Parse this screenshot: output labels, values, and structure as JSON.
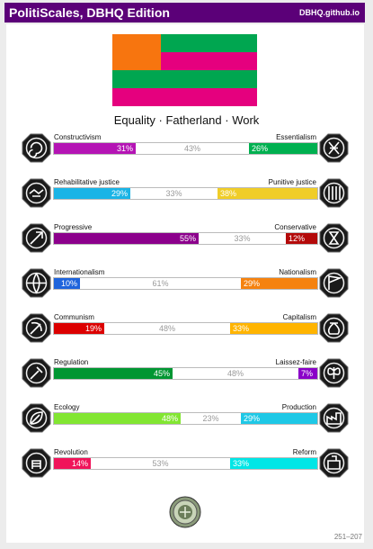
{
  "header": {
    "title": "PolitiScales, DBHQ Edition",
    "site": "DBHQ.github.io"
  },
  "flag": {
    "stripes": [
      "#00a650",
      "#e5007e",
      "#00a650",
      "#e5007e"
    ],
    "canton": "#f7750f"
  },
  "ideology": "Equality · Fatherland · Work",
  "axes": [
    {
      "left_label": "Constructivism",
      "right_label": "Essentialism",
      "left_value": 31,
      "right_value": 26,
      "center_value": 43,
      "left_text": "31%",
      "right_text": "26%",
      "center_text": "43%",
      "left_color": "#b414b4",
      "right_color": "#00b050",
      "left_icon": "swirl-icon",
      "right_icon": "dna-icon"
    },
    {
      "left_label": "Rehabilitative justice",
      "right_label": "Punitive justice",
      "left_value": 29,
      "right_value": 38,
      "center_value": 33,
      "left_text": "29%",
      "right_text": "38%",
      "center_text": "33%",
      "left_color": "#1ab4e6",
      "right_color": "#f0cd28",
      "left_icon": "handshake-icon",
      "right_icon": "prison-bars-icon"
    },
    {
      "left_label": "Progressive",
      "right_label": "Conservative",
      "left_value": 55,
      "right_value": 12,
      "center_value": 33,
      "left_text": "55%",
      "right_text": "12%",
      "center_text": "33%",
      "left_color": "#8c008c",
      "right_color": "#b40a0a",
      "left_icon": "rocket-icon",
      "right_icon": "hourglass-icon"
    },
    {
      "left_label": "Internationalism",
      "right_label": "Nationalism",
      "left_value": 10,
      "right_value": 29,
      "center_value": 61,
      "left_text": "10%",
      "right_text": "29%",
      "center_text": "61%",
      "left_color": "#1e64dc",
      "right_color": "#f5820f",
      "left_icon": "globe-icon",
      "right_icon": "flag-icon"
    },
    {
      "left_label": "Communism",
      "right_label": "Capitalism",
      "left_value": 19,
      "right_value": 33,
      "center_value": 48,
      "left_text": "19%",
      "right_text": "33%",
      "center_text": "48%",
      "left_color": "#dc0000",
      "right_color": "#ffb400",
      "left_icon": "hammer-sickle-icon",
      "right_icon": "money-bag-icon"
    },
    {
      "left_label": "Regulation",
      "right_label": "Laissez-faire",
      "left_value": 45,
      "right_value": 7,
      "center_value": 48,
      "left_text": "45%",
      "right_text": "7%",
      "center_text": "48%",
      "left_color": "#009632",
      "right_color": "#8a00c8",
      "left_icon": "gavel-icon",
      "right_icon": "butterfly-icon"
    },
    {
      "left_label": "Ecology",
      "right_label": "Production",
      "left_value": 48,
      "right_value": 29,
      "center_value": 23,
      "left_text": "48%",
      "right_text": "29%",
      "center_text": "23%",
      "left_color": "#82e632",
      "right_color": "#1ec8e6",
      "left_icon": "leaf-icon",
      "right_icon": "factory-icon"
    },
    {
      "left_label": "Revolution",
      "right_label": "Reform",
      "left_value": 14,
      "right_value": 33,
      "center_value": 53,
      "left_text": "14%",
      "right_text": "33%",
      "center_text": "53%",
      "left_color": "#f0145a",
      "right_color": "#00e6e6",
      "left_icon": "fist-icon",
      "right_icon": "ballot-icon"
    }
  ],
  "footer": "251–207"
}
